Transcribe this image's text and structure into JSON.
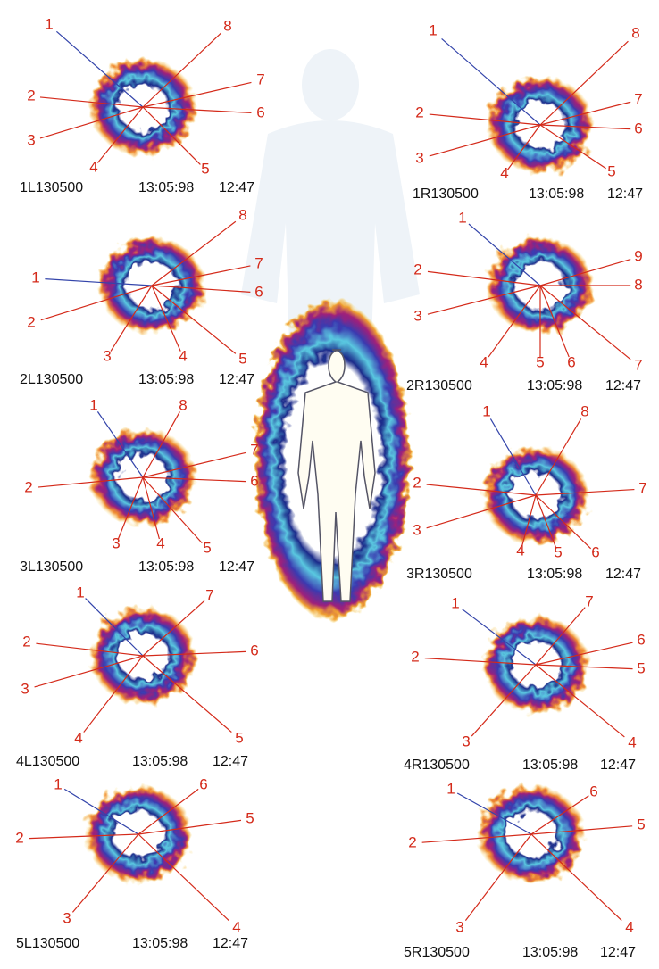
{
  "panels": [
    {
      "id": "1L130500",
      "date": "13:05:98",
      "time": "12:47",
      "sectors": [
        "1",
        "2",
        "3",
        "4",
        "5",
        "6",
        "7",
        "8"
      ]
    },
    {
      "id": "2L130500",
      "date": "13:05:98",
      "time": "12:47",
      "sectors": [
        "1",
        "2",
        "3",
        "4",
        "5",
        "6",
        "7",
        "8"
      ]
    },
    {
      "id": "3L130500",
      "date": "13:05:98",
      "time": "12:47",
      "sectors": [
        "1",
        "2",
        "3",
        "4",
        "5",
        "6",
        "7",
        "8"
      ]
    },
    {
      "id": "4L130500",
      "date": "13:05:98",
      "time": "12:47",
      "sectors": [
        "1",
        "2",
        "3",
        "4",
        "5",
        "6",
        "7"
      ]
    },
    {
      "id": "5L130500",
      "date": "13:05:98",
      "time": "12:47",
      "sectors": [
        "1",
        "2",
        "3",
        "4",
        "5",
        "6"
      ]
    },
    {
      "id": "1R130500",
      "date": "13:05:98",
      "time": "12:47",
      "sectors": [
        "1",
        "2",
        "3",
        "4",
        "5",
        "6",
        "7",
        "8"
      ]
    },
    {
      "id": "2R130500",
      "date": "13:05:98",
      "time": "12:47",
      "sectors": [
        "1",
        "2",
        "3",
        "4",
        "5",
        "6",
        "7",
        "8",
        "9"
      ]
    },
    {
      "id": "3R130500",
      "date": "13:05:98",
      "time": "12:47",
      "sectors": [
        "1",
        "2",
        "3",
        "4",
        "5",
        "6",
        "7",
        "8"
      ]
    },
    {
      "id": "4R130500",
      "date": "13:05:98",
      "time": "12:47",
      "sectors": [
        "1",
        "2",
        "3",
        "4",
        "5",
        "6",
        "7"
      ]
    },
    {
      "id": "5R130500",
      "date": "13:05:98",
      "time": "12:47",
      "sectors": [
        "1",
        "2",
        "3",
        "4",
        "5",
        "6"
      ]
    }
  ]
}
